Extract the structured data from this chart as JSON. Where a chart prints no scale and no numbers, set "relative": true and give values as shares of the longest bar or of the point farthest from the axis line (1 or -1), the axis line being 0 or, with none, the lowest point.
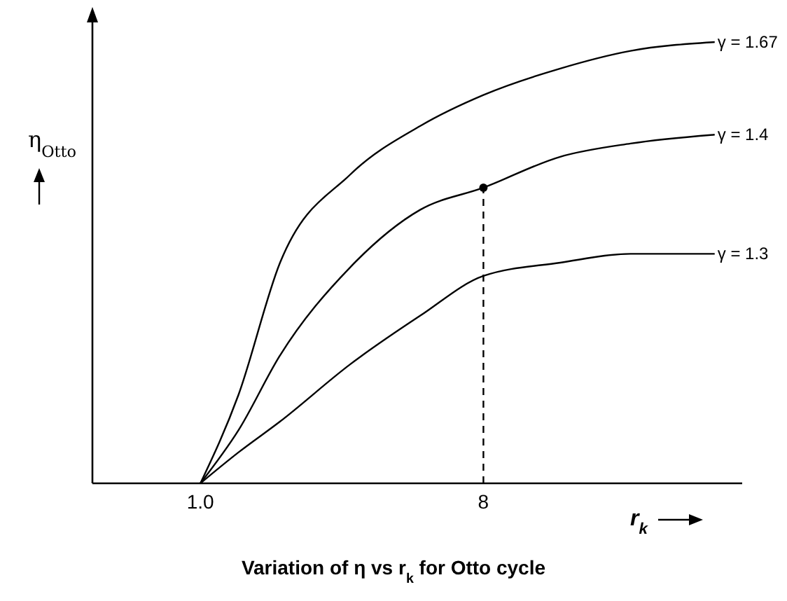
{
  "chart_data": {
    "type": "line",
    "relative": true,
    "title": "Variation of η vs r$_{k}$ for Otto cycle",
    "xlabel": "r$_{k}$",
    "ylabel": "η$_{Otto}$",
    "xlim": [
      -1.67,
      14.4
    ],
    "xticks": [
      {
        "value": 1,
        "label": "1.0"
      },
      8
    ],
    "series": [
      {
        "name": "γ = 1.67",
        "color": "#000000",
        "x": [
          1,
          1.94,
          2.97,
          4.71,
          6.44,
          8,
          9.9,
          11.64,
          13.72
        ],
        "values": [
          0,
          0.2,
          0.5,
          0.7,
          0.81,
          0.88,
          0.94,
          0.98,
          1
        ]
      },
      {
        "name": "γ = 1.4",
        "color": "#000000",
        "x": [
          1,
          1.94,
          2.97,
          4.71,
          6.44,
          8,
          9.9,
          11.64,
          13.72
        ],
        "values": [
          0,
          0.12,
          0.29,
          0.49,
          0.62,
          0.67,
          0.74,
          0.77,
          0.79
        ]
      },
      {
        "name": "γ = 1.3",
        "color": "#000000",
        "x": [
          1,
          1.94,
          2.97,
          4.71,
          6.44,
          8,
          9.9,
          11.64,
          13.72
        ],
        "values": [
          0,
          0.07,
          0.14,
          0.27,
          0.38,
          0.47,
          0.5,
          0.52,
          0.52
        ]
      },
      {
        "type": "line",
        "color": "#000000",
        "line_style": "dashed",
        "x": [
          8,
          8
        ],
        "values": [
          0,
          0.67
        ]
      },
      {
        "type": "scatter",
        "color": "#000000",
        "marker": "circle",
        "x": [
          8
        ],
        "values": [
          0.67
        ]
      }
    ]
  }
}
